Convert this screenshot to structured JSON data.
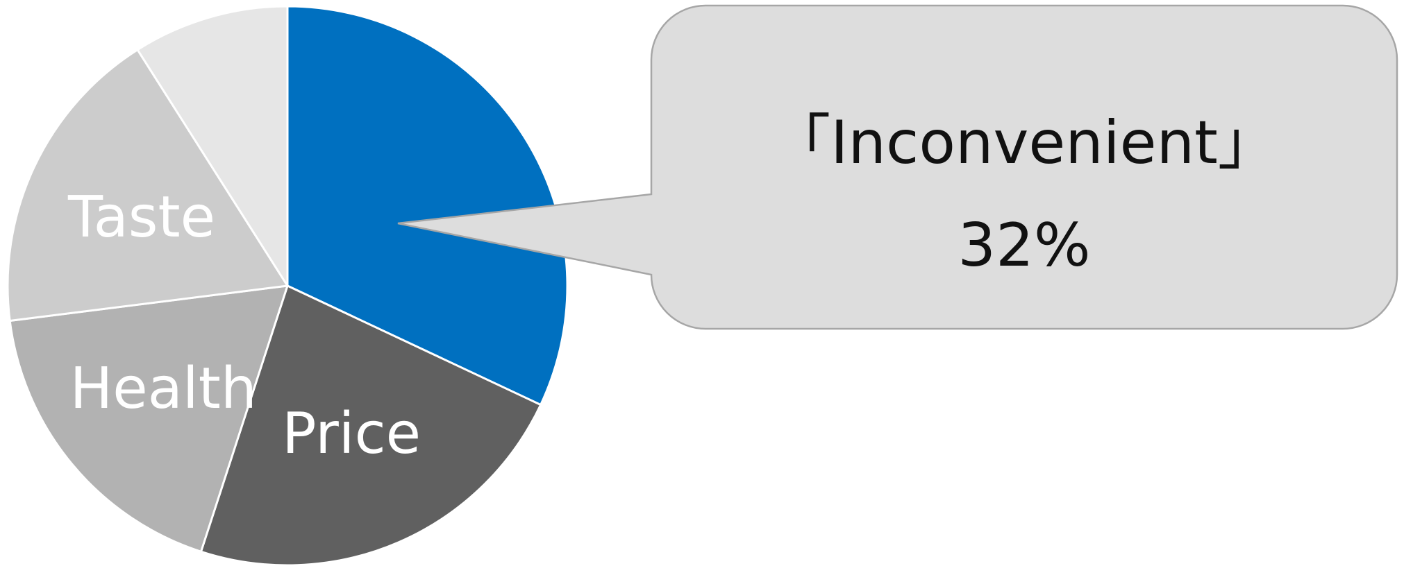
{
  "chart_data": {
    "type": "pie",
    "slices": [
      {
        "label": "",
        "value": 32,
        "color": "#0070C0"
      },
      {
        "label": "Price",
        "value": 23,
        "color": "#606060"
      },
      {
        "label": "Health",
        "value": 18,
        "color": "#B2B2B2"
      },
      {
        "label": "Taste",
        "value": 18,
        "color": "#CCCCCC"
      },
      {
        "label": "",
        "value": 9,
        "color": "#E6E6E6"
      }
    ],
    "start_angle_deg": 0,
    "direction": "clockwise",
    "slice_border_color": "#FFFFFF"
  },
  "callout": {
    "title": "「Inconvenient」",
    "value_text": "32%",
    "fill": "#DDDDDD",
    "border": "#A6A6A6"
  }
}
